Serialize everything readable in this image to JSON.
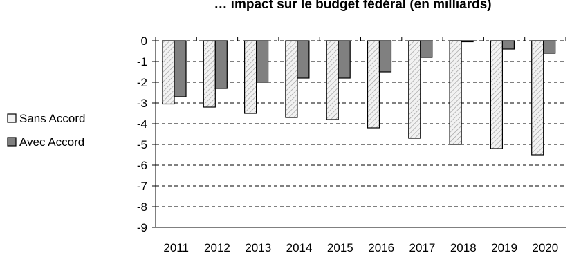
{
  "colors": {
    "sans_accord_fill": "#f2f2f2",
    "sans_accord_hatch": "#9a9a9a",
    "avec_accord_fill": "#808080",
    "bar_stroke": "#000000",
    "grid": "#000000"
  },
  "chart_data": {
    "type": "bar",
    "title": "… impact sur le budget fédéral (en milliards)",
    "xlabel": "",
    "ylabel": "",
    "categories": [
      "2011",
      "2012",
      "2013",
      "2014",
      "2015",
      "2016",
      "2017",
      "2018",
      "2019",
      "2020"
    ],
    "series": [
      {
        "name": "Sans Accord",
        "values": [
          -3.05,
          -3.2,
          -3.5,
          -3.7,
          -3.8,
          -4.2,
          -4.7,
          -5.0,
          -5.2,
          -5.5
        ]
      },
      {
        "name": "Avec Accord",
        "values": [
          -2.7,
          -2.3,
          -2.0,
          -1.8,
          -1.8,
          -1.5,
          -0.8,
          -0.05,
          -0.4,
          -0.6
        ]
      }
    ],
    "ylim": [
      -9,
      0
    ],
    "yticks": [
      "0",
      "-1",
      "-2",
      "-3",
      "-4",
      "-5",
      "-6",
      "-7",
      "-8",
      "-9"
    ],
    "grid": "horizontal dashed",
    "legend_position": "left"
  }
}
